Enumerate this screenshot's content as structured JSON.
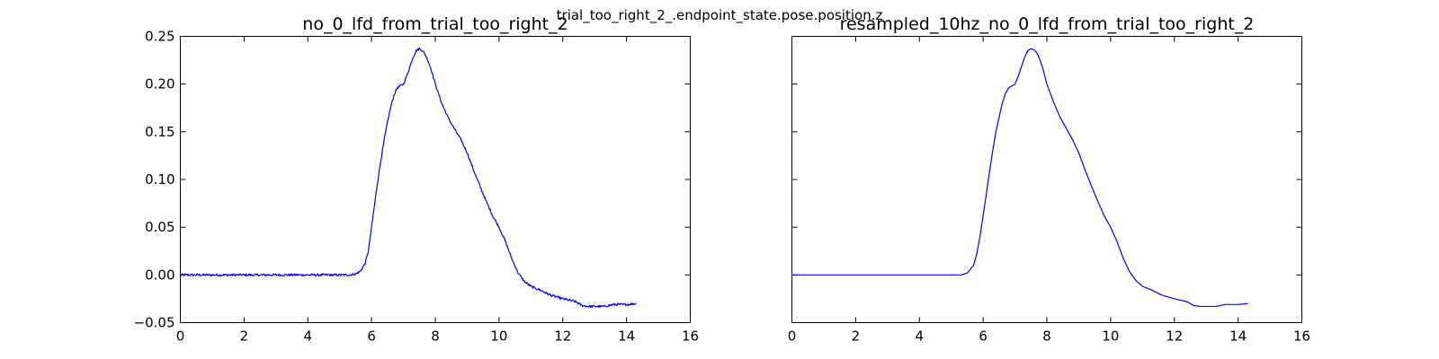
{
  "figure": {
    "suptitle": "trial_too_right_2_.endpoint_state.pose.position.z"
  },
  "chart_data": [
    {
      "type": "line",
      "title": "no_0_lfd_from_trial_too_right_2",
      "xlabel": "",
      "ylabel": "",
      "xlim": [
        0,
        16
      ],
      "ylim": [
        -0.05,
        0.25
      ],
      "xticks": [
        0,
        2,
        4,
        6,
        8,
        10,
        12,
        14,
        16
      ],
      "xtick_labels": [
        "0",
        "2",
        "4",
        "6",
        "8",
        "10",
        "12",
        "14",
        "16"
      ],
      "yticks": [
        -0.05,
        0.0,
        0.05,
        0.1,
        0.15,
        0.2,
        0.25
      ],
      "ytick_labels": [
        "−0.05",
        "0.00",
        "0.05",
        "0.10",
        "0.15",
        "0.20",
        "0.25"
      ],
      "grid": false,
      "noisy": true,
      "series": [
        {
          "color": "#0000ff",
          "x": [
            0,
            0.5,
            1,
            1.5,
            2,
            2.5,
            3,
            3.5,
            4,
            4.5,
            5,
            5.3,
            5.5,
            5.65,
            5.8,
            5.9,
            6.0,
            6.1,
            6.2,
            6.3,
            6.4,
            6.5,
            6.6,
            6.7,
            6.8,
            6.9,
            7.0,
            7.1,
            7.2,
            7.3,
            7.4,
            7.5,
            7.6,
            7.7,
            7.8,
            7.9,
            8.0,
            8.2,
            8.4,
            8.6,
            8.8,
            9.0,
            9.2,
            9.4,
            9.6,
            9.8,
            10.0,
            10.2,
            10.4,
            10.6,
            10.8,
            11.0,
            11.3,
            11.6,
            12.0,
            12.4,
            12.6,
            12.8,
            13.0,
            13.3,
            13.6,
            14.0,
            14.3
          ],
          "y": [
            0.0,
            0.0,
            0.0,
            0.0,
            0.0,
            0.0,
            0.0,
            0.0,
            0.0,
            0.0,
            0.0,
            0.0,
            0.001,
            0.004,
            0.012,
            0.025,
            0.05,
            0.075,
            0.1,
            0.122,
            0.142,
            0.16,
            0.176,
            0.188,
            0.196,
            0.198,
            0.2,
            0.208,
            0.218,
            0.228,
            0.235,
            0.237,
            0.235,
            0.23,
            0.222,
            0.212,
            0.2,
            0.18,
            0.165,
            0.153,
            0.142,
            0.128,
            0.11,
            0.093,
            0.077,
            0.062,
            0.05,
            0.035,
            0.017,
            0.002,
            -0.007,
            -0.012,
            -0.016,
            -0.021,
            -0.025,
            -0.028,
            -0.032,
            -0.033,
            -0.033,
            -0.033,
            -0.031,
            -0.031,
            -0.03
          ]
        }
      ]
    },
    {
      "type": "line",
      "title": "resampled_10hz_no_0_lfd_from_trial_too_right_2",
      "xlabel": "",
      "ylabel": "",
      "xlim": [
        0,
        16
      ],
      "ylim": [
        -0.05,
        0.25
      ],
      "xticks": [
        0,
        2,
        4,
        6,
        8,
        10,
        12,
        14,
        16
      ],
      "xtick_labels": [
        "0",
        "2",
        "4",
        "6",
        "8",
        "10",
        "12",
        "14",
        "16"
      ],
      "yticks": [
        -0.05,
        0.0,
        0.05,
        0.1,
        0.15,
        0.2,
        0.25
      ],
      "ytick_labels": [
        "",
        "",
        "",
        "",
        "",
        "",
        ""
      ],
      "grid": false,
      "noisy": false,
      "series": [
        {
          "color": "#0000ff",
          "x": [
            0,
            0.5,
            1,
            1.5,
            2,
            2.5,
            3,
            3.5,
            4,
            4.5,
            5,
            5.3,
            5.5,
            5.7,
            5.8,
            5.9,
            6.0,
            6.1,
            6.2,
            6.3,
            6.4,
            6.5,
            6.6,
            6.7,
            6.8,
            6.9,
            7.0,
            7.1,
            7.2,
            7.3,
            7.4,
            7.5,
            7.6,
            7.7,
            7.8,
            7.9,
            8.0,
            8.2,
            8.4,
            8.6,
            8.8,
            9.0,
            9.2,
            9.4,
            9.6,
            9.8,
            10.0,
            10.2,
            10.4,
            10.6,
            10.8,
            11.0,
            11.3,
            11.6,
            12.0,
            12.4,
            12.6,
            12.8,
            13.0,
            13.3,
            13.6,
            14.0,
            14.3
          ],
          "y": [
            0.0,
            0.0,
            0.0,
            0.0,
            0.0,
            0.0,
            0.0,
            0.0,
            0.0,
            0.0,
            0.0,
            0.0,
            0.002,
            0.01,
            0.022,
            0.04,
            0.062,
            0.085,
            0.108,
            0.13,
            0.15,
            0.165,
            0.18,
            0.19,
            0.196,
            0.198,
            0.2,
            0.208,
            0.218,
            0.228,
            0.235,
            0.237,
            0.236,
            0.232,
            0.224,
            0.213,
            0.2,
            0.182,
            0.166,
            0.154,
            0.142,
            0.128,
            0.11,
            0.093,
            0.077,
            0.062,
            0.05,
            0.035,
            0.017,
            0.003,
            -0.006,
            -0.012,
            -0.016,
            -0.021,
            -0.025,
            -0.028,
            -0.032,
            -0.033,
            -0.033,
            -0.033,
            -0.031,
            -0.031,
            -0.03
          ]
        }
      ]
    }
  ]
}
